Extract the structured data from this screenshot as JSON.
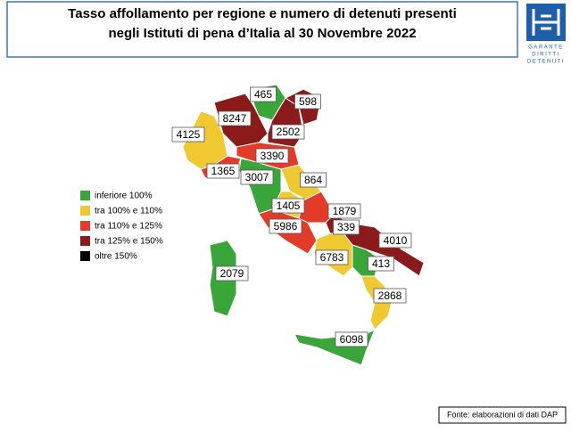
{
  "title": [
    "Tasso affollamento per regione e numero di detenuti presenti",
    "negli Istituti di pena d’Italia al 30 Novembre 2022"
  ],
  "logo": [
    "GARANTE",
    "DIRITTI",
    "DETENUTI"
  ],
  "legend": [
    {
      "label": "inferiore 100%",
      "color": "#3aa53a"
    },
    {
      "label": "tra 100% e 110%",
      "color": "#f0c832"
    },
    {
      "label": "tra 110% e 125%",
      "color": "#e23b2a"
    },
    {
      "label": "tra 125% e 150%",
      "color": "#8b1a1a"
    },
    {
      "label": "oltre 150%",
      "color": "#000000"
    }
  ],
  "regions": [
    {
      "value": 465,
      "color": "#3aa53a"
    },
    {
      "value": 598,
      "color": "#8b1a1a"
    },
    {
      "value": 8247,
      "color": "#8b1a1a"
    },
    {
      "value": 4125,
      "color": "#f0c832"
    },
    {
      "value": 2502,
      "color": "#8b1a1a"
    },
    {
      "value": 3390,
      "color": "#e23b2a"
    },
    {
      "value": 1365,
      "color": "#e23b2a"
    },
    {
      "value": 3007,
      "color": "#3aa53a"
    },
    {
      "value": 864,
      "color": "#f0c832"
    },
    {
      "value": 1405,
      "color": "#f0c832"
    },
    {
      "value": 1879,
      "color": "#e23b2a"
    },
    {
      "value": 339,
      "color": "#8b1a1a"
    },
    {
      "value": 5986,
      "color": "#e23b2a"
    },
    {
      "value": 4010,
      "color": "#8b1a1a"
    },
    {
      "value": 6783,
      "color": "#f0c832"
    },
    {
      "value": 413,
      "color": "#3aa53a"
    },
    {
      "value": 2079,
      "color": "#3aa53a"
    },
    {
      "value": 2868,
      "color": "#f0c832"
    },
    {
      "value": 6098,
      "color": "#3aa53a"
    }
  ],
  "source": "Fonte: elaborazioni di dati DAP"
}
